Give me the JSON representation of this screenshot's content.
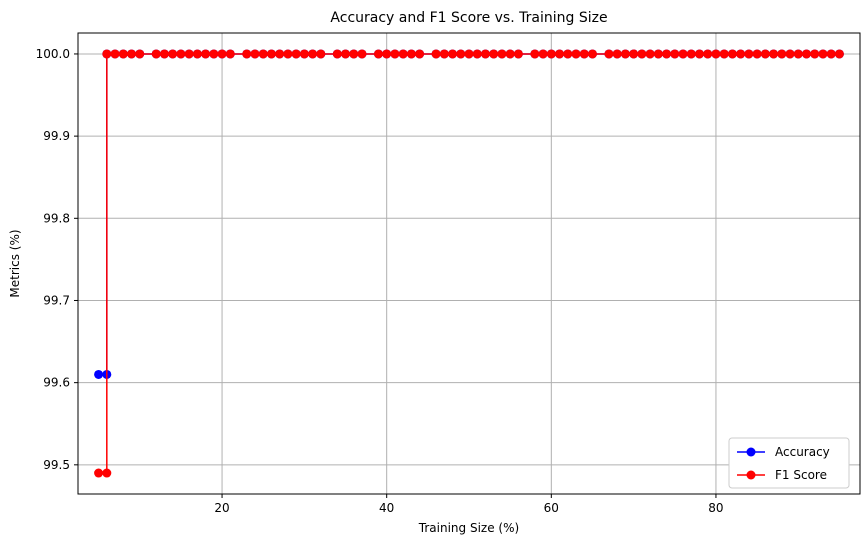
{
  "chart_data": {
    "type": "line",
    "title": "Accuracy and F1 Score vs. Training Size",
    "xlabel": "Training Size (%)",
    "ylabel": "Metrics (%)",
    "xlim": [
      2.5,
      97.5
    ],
    "ylim": [
      99.4645,
      100.0255
    ],
    "xticks": [
      20,
      40,
      60,
      80
    ],
    "yticks": [
      99.5,
      99.6,
      99.7,
      99.8,
      99.9,
      100.0
    ],
    "xtick_labels": [
      "20",
      "40",
      "60",
      "80"
    ],
    "ytick_labels": [
      "99.5",
      "99.6",
      "99.7",
      "99.8",
      "99.9",
      "100.0"
    ],
    "grid": true,
    "legend_position": "lower-right",
    "series": [
      {
        "name": "Accuracy",
        "color": "#0000ff",
        "x": [
          5,
          6,
          6,
          7,
          8,
          9,
          10,
          12,
          13,
          14,
          15,
          16,
          17,
          18,
          19,
          20,
          21,
          23,
          24,
          25,
          26,
          27,
          28,
          29,
          30,
          31,
          32,
          34,
          35,
          36,
          37,
          39,
          40,
          41,
          42,
          43,
          44,
          46,
          47,
          48,
          49,
          50,
          51,
          52,
          53,
          54,
          55,
          56,
          58,
          59,
          60,
          61,
          62,
          63,
          64,
          65,
          67,
          68,
          69,
          70,
          71,
          72,
          73,
          74,
          75,
          76,
          77,
          78,
          79,
          80,
          81,
          82,
          83,
          84,
          85,
          86,
          87,
          88,
          89,
          90,
          91,
          92,
          93,
          94,
          95
        ],
        "y": [
          99.61,
          99.61,
          100,
          100,
          100,
          100,
          100,
          100,
          100,
          100,
          100,
          100,
          100,
          100,
          100,
          100,
          100,
          100,
          100,
          100,
          100,
          100,
          100,
          100,
          100,
          100,
          100,
          100,
          100,
          100,
          100,
          100,
          100,
          100,
          100,
          100,
          100,
          100,
          100,
          100,
          100,
          100,
          100,
          100,
          100,
          100,
          100,
          100,
          100,
          100,
          100,
          100,
          100,
          100,
          100,
          100,
          100,
          100,
          100,
          100,
          100,
          100,
          100,
          100,
          100,
          100,
          100,
          100,
          100,
          100,
          100,
          100,
          100,
          100,
          100,
          100,
          100,
          100,
          100,
          100,
          100,
          100,
          100,
          100,
          100
        ]
      },
      {
        "name": "F1 Score",
        "color": "#ff0000",
        "x": [
          5,
          6,
          6,
          7,
          8,
          9,
          10,
          12,
          13,
          14,
          15,
          16,
          17,
          18,
          19,
          20,
          21,
          23,
          24,
          25,
          26,
          27,
          28,
          29,
          30,
          31,
          32,
          34,
          35,
          36,
          37,
          39,
          40,
          41,
          42,
          43,
          44,
          46,
          47,
          48,
          49,
          50,
          51,
          52,
          53,
          54,
          55,
          56,
          58,
          59,
          60,
          61,
          62,
          63,
          64,
          65,
          67,
          68,
          69,
          70,
          71,
          72,
          73,
          74,
          75,
          76,
          77,
          78,
          79,
          80,
          81,
          82,
          83,
          84,
          85,
          86,
          87,
          88,
          89,
          90,
          91,
          92,
          93,
          94,
          95
        ],
        "y": [
          99.49,
          99.49,
          100,
          100,
          100,
          100,
          100,
          100,
          100,
          100,
          100,
          100,
          100,
          100,
          100,
          100,
          100,
          100,
          100,
          100,
          100,
          100,
          100,
          100,
          100,
          100,
          100,
          100,
          100,
          100,
          100,
          100,
          100,
          100,
          100,
          100,
          100,
          100,
          100,
          100,
          100,
          100,
          100,
          100,
          100,
          100,
          100,
          100,
          100,
          100,
          100,
          100,
          100,
          100,
          100,
          100,
          100,
          100,
          100,
          100,
          100,
          100,
          100,
          100,
          100,
          100,
          100,
          100,
          100,
          100,
          100,
          100,
          100,
          100,
          100,
          100,
          100,
          100,
          100,
          100,
          100,
          100,
          100,
          100,
          100
        ]
      }
    ]
  }
}
